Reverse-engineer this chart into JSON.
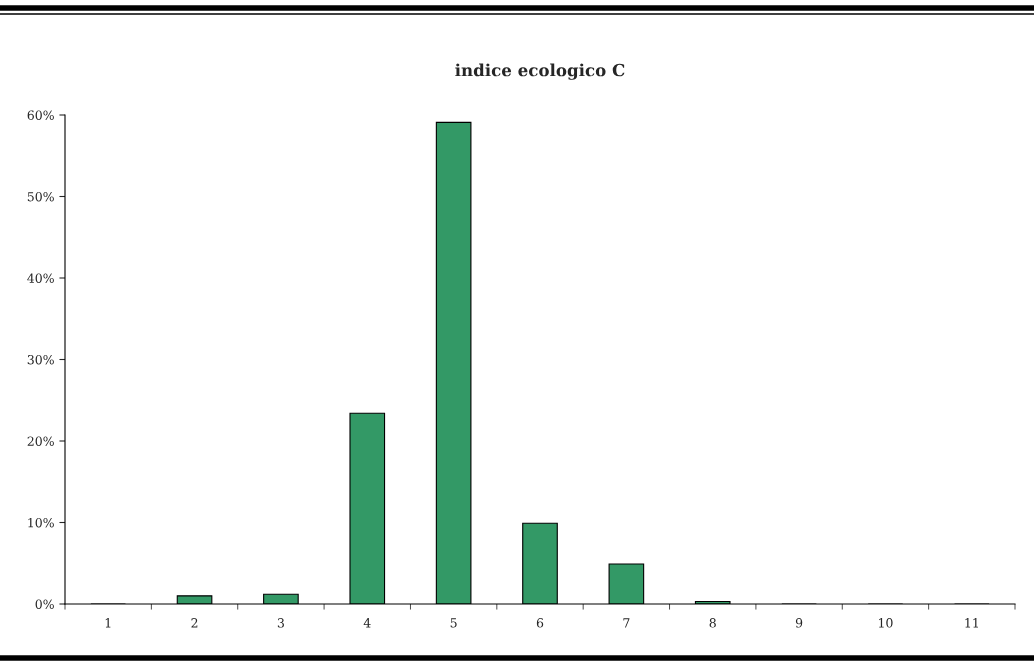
{
  "chart_data": {
    "type": "bar",
    "title": "indice ecologico C",
    "categories": [
      "1",
      "2",
      "3",
      "4",
      "5",
      "6",
      "7",
      "8",
      "9",
      "10",
      "11"
    ],
    "values": [
      0,
      1.0,
      1.2,
      23.4,
      59.1,
      9.9,
      4.9,
      0.3,
      0,
      0,
      0
    ],
    "color": "#339966",
    "ylim": [
      0,
      60
    ],
    "yticks": [
      {
        "value": 0,
        "label": "0%"
      },
      {
        "value": 10,
        "label": "10%"
      },
      {
        "value": 20,
        "label": "20%"
      },
      {
        "value": 30,
        "label": "30%"
      },
      {
        "value": 40,
        "label": "40%"
      },
      {
        "value": 50,
        "label": "50%"
      },
      {
        "value": 60,
        "label": "60%"
      }
    ],
    "grid": false,
    "legend": false
  }
}
